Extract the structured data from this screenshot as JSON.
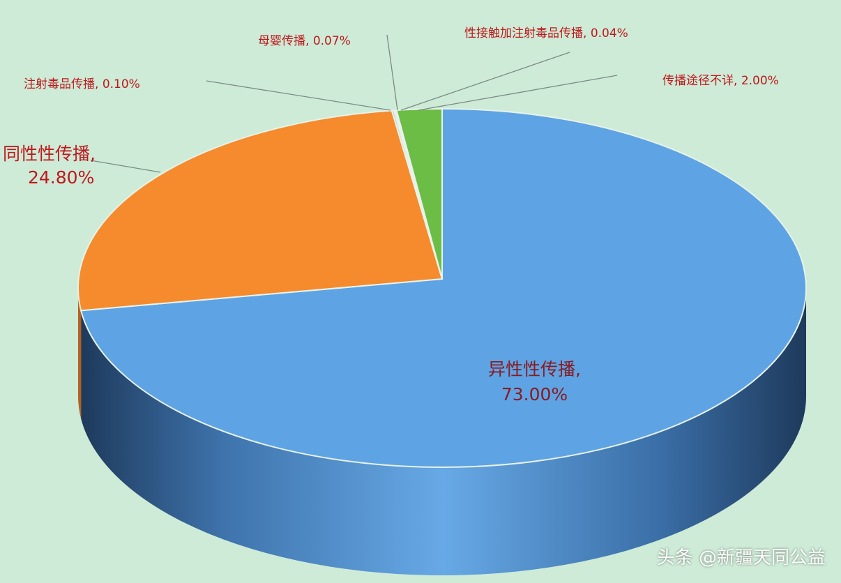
{
  "chart_data": {
    "type": "pie",
    "style": "3d",
    "start": "top",
    "direction": "clockwise",
    "slices": [
      {
        "label": "异性性传播",
        "value": 73.0,
        "value_label": "73.00%",
        "color": "#5ea4e4"
      },
      {
        "label": "同性性传播",
        "value": 24.8,
        "value_label": "24.80%",
        "color": "#f58b2c"
      },
      {
        "label": "注射毒品传播",
        "value": 0.1,
        "value_label": "0.10%",
        "color": "#c8cfd6"
      },
      {
        "label": "母婴传播",
        "value": 0.07,
        "value_label": "0.07%",
        "color": "#f4d64a"
      },
      {
        "label": "性接触加注射毒品传播",
        "value": 0.04,
        "value_label": "0.04%",
        "color": "#3e6fb0"
      },
      {
        "label": "传播途径不详",
        "value": 2.0,
        "value_label": "2.00%",
        "color": "#6cbd45"
      }
    ],
    "label_color": "#c0171c",
    "background": "#cdebd6"
  },
  "watermark": "头条 @新疆天同公益"
}
